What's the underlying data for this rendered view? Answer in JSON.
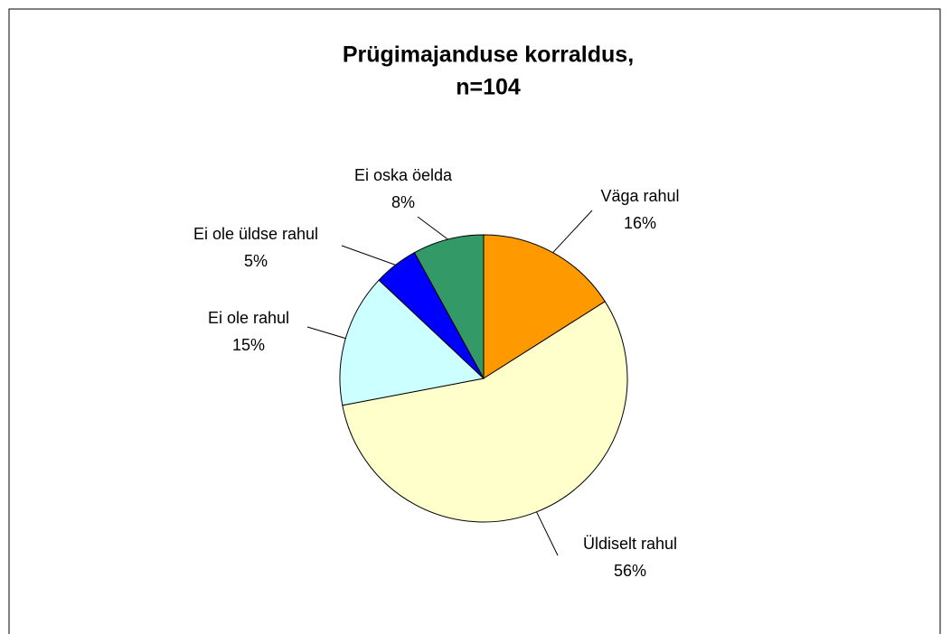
{
  "chart_data": {
    "type": "pie",
    "title": [
      "Prügimajanduse korraldus,",
      "n=104"
    ],
    "categories": [
      "Väga rahul",
      "Üldiselt rahul",
      "Ei ole rahul",
      "Ei ole üldse rahul",
      "Ei oska öelda"
    ],
    "values": [
      16,
      56,
      15,
      5,
      8
    ],
    "value_labels": [
      "16%",
      "56%",
      "15%",
      "5%",
      "8%"
    ],
    "colors": [
      "#ff9900",
      "#ffffcc",
      "#ccffff",
      "#0000ff",
      "#339966"
    ]
  }
}
